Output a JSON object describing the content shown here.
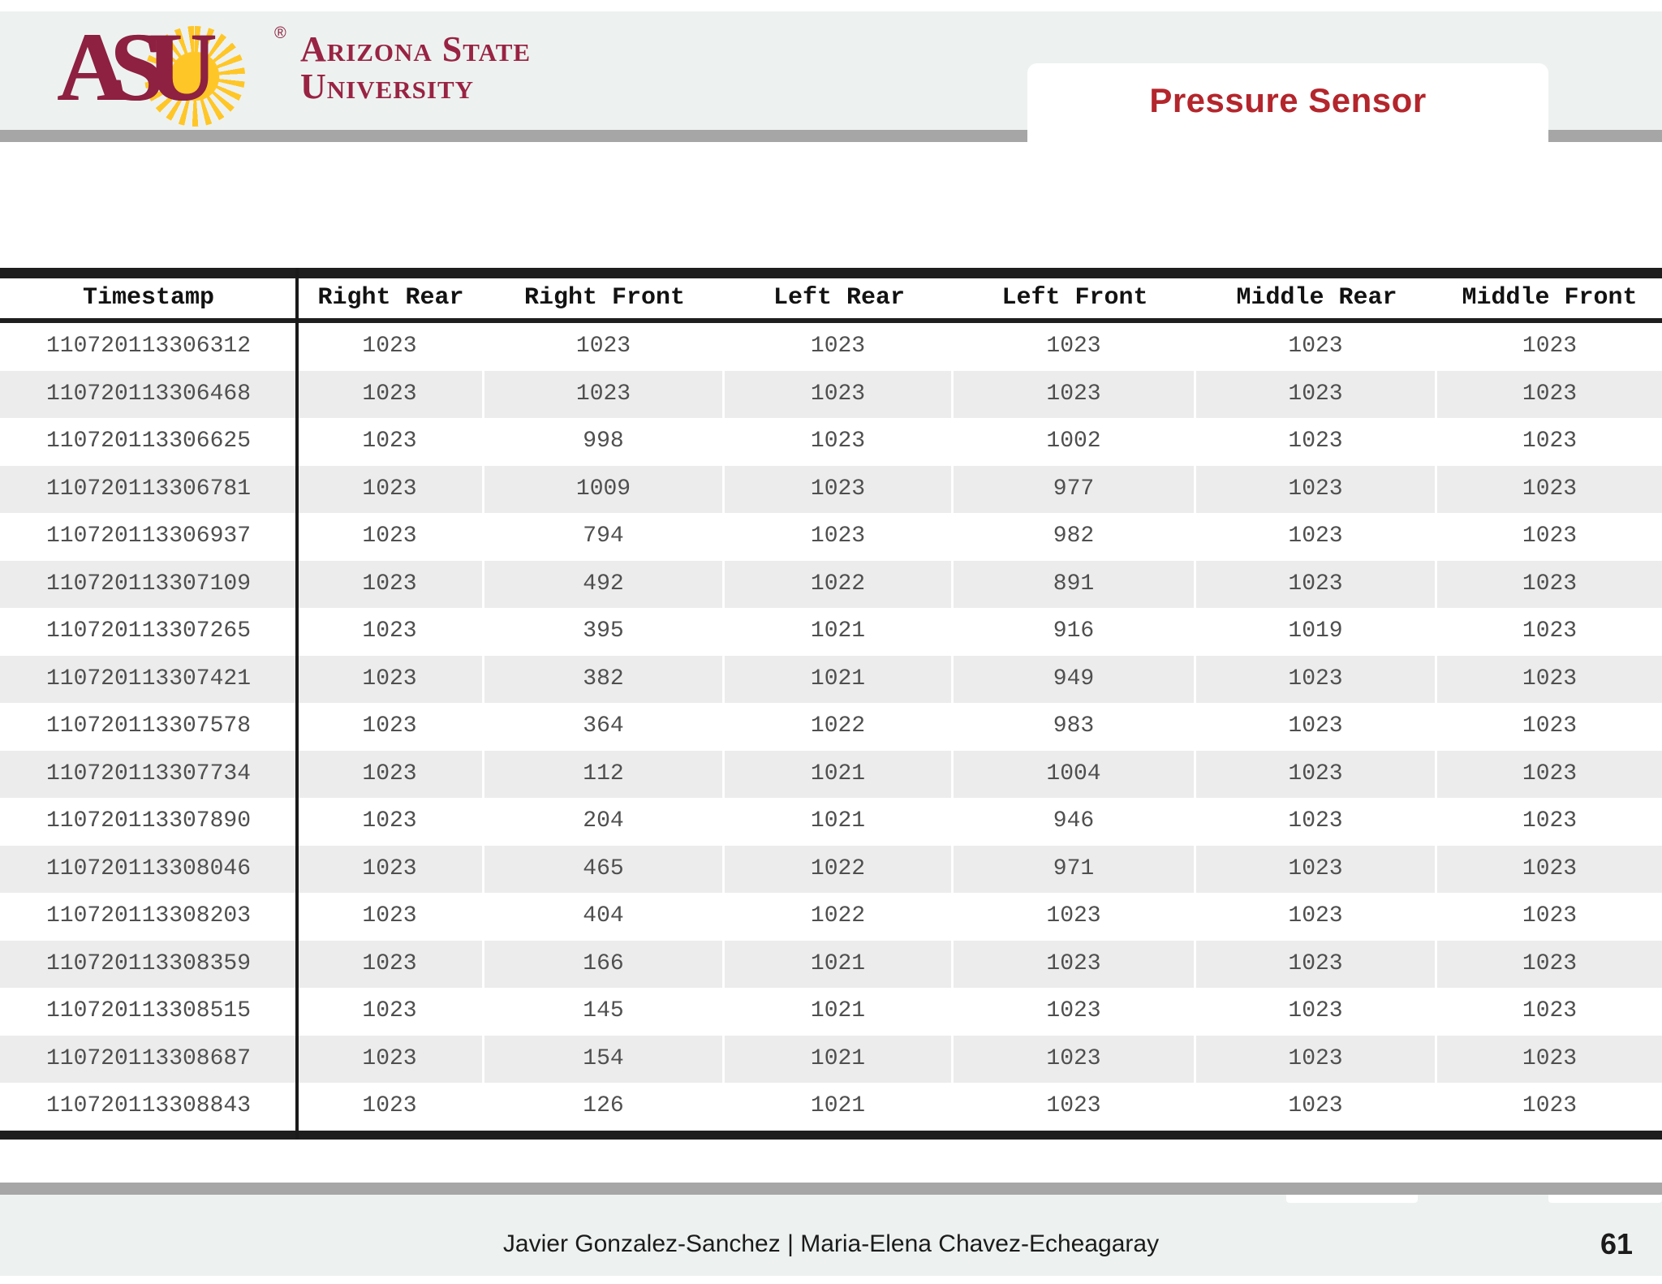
{
  "header": {
    "logo": {
      "acronym": "ASU",
      "line1": "Arizona State",
      "line2": "University",
      "registered": "®"
    },
    "title": "Pressure Sensor"
  },
  "table": {
    "columns": [
      "Timestamp",
      "Right Rear",
      "Right Front",
      "Left Rear",
      "Left Front",
      "Middle Rear",
      "Middle Front"
    ],
    "rows": [
      [
        "110720113306312",
        "1023",
        "1023",
        "1023",
        "1023",
        "1023",
        "1023"
      ],
      [
        "110720113306468",
        "1023",
        "1023",
        "1023",
        "1023",
        "1023",
        "1023"
      ],
      [
        "110720113306625",
        "1023",
        "998",
        "1023",
        "1002",
        "1023",
        "1023"
      ],
      [
        "110720113306781",
        "1023",
        "1009",
        "1023",
        "977",
        "1023",
        "1023"
      ],
      [
        "110720113306937",
        "1023",
        "794",
        "1023",
        "982",
        "1023",
        "1023"
      ],
      [
        "110720113307109",
        "1023",
        "492",
        "1022",
        "891",
        "1023",
        "1023"
      ],
      [
        "110720113307265",
        "1023",
        "395",
        "1021",
        "916",
        "1019",
        "1023"
      ],
      [
        "110720113307421",
        "1023",
        "382",
        "1021",
        "949",
        "1023",
        "1023"
      ],
      [
        "110720113307578",
        "1023",
        "364",
        "1022",
        "983",
        "1023",
        "1023"
      ],
      [
        "110720113307734",
        "1023",
        "112",
        "1021",
        "1004",
        "1023",
        "1023"
      ],
      [
        "110720113307890",
        "1023",
        "204",
        "1021",
        "946",
        "1023",
        "1023"
      ],
      [
        "110720113308046",
        "1023",
        "465",
        "1022",
        "971",
        "1023",
        "1023"
      ],
      [
        "110720113308203",
        "1023",
        "404",
        "1022",
        "1023",
        "1023",
        "1023"
      ],
      [
        "110720113308359",
        "1023",
        "166",
        "1021",
        "1023",
        "1023",
        "1023"
      ],
      [
        "110720113308515",
        "1023",
        "145",
        "1021",
        "1023",
        "1023",
        "1023"
      ],
      [
        "110720113308687",
        "1023",
        "154",
        "1021",
        "1023",
        "1023",
        "1023"
      ],
      [
        "110720113308843",
        "1023",
        "126",
        "1021",
        "1023",
        "1023",
        "1023"
      ]
    ]
  },
  "footer": {
    "authors": "Javier Gonzalez-Sanchez  |  Maria-Elena Chavez-Echeagaray",
    "page": "61"
  },
  "colors": {
    "asu_maroon": "#8e2041",
    "asu_gold": "#ffc627",
    "title_red": "#b3262c",
    "band_light": "#edf2f0",
    "bar_gray": "#a6a6a6",
    "row_stripe": "#ececec",
    "table_border": "#1e1e1e",
    "data_text": "#4f4f4f"
  }
}
